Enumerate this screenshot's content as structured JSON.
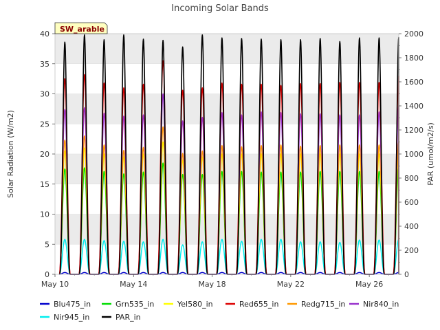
{
  "chart_data": {
    "type": "line",
    "title": "Incoming Solar Bands",
    "badge": "SW_arable",
    "ylabel": "Solar Radiation (W/m2)",
    "y2label": "PAR (umol/m2/s)",
    "ylim": [
      0,
      40
    ],
    "y2lim": [
      0,
      2000
    ],
    "yticks": [
      "0",
      "5",
      "10",
      "15",
      "20",
      "25",
      "30",
      "35",
      "40"
    ],
    "y2ticks": [
      "0",
      "200",
      "400",
      "600",
      "800",
      "1000",
      "1200",
      "1400",
      "1600",
      "1800",
      "2000"
    ],
    "xlim_days": [
      10,
      27.5
    ],
    "xticks": [
      {
        "day": 10,
        "label": "May 10"
      },
      {
        "day": 14,
        "label": "May 14"
      },
      {
        "day": 18,
        "label": "May 18"
      },
      {
        "day": 22,
        "label": "May 22"
      },
      {
        "day": 26,
        "label": "May 26"
      }
    ],
    "grid": "horizontal bands",
    "legend_position": "bottom",
    "days": [
      10,
      11,
      12,
      13,
      14,
      15,
      16,
      17,
      18,
      19,
      20,
      21,
      22,
      23,
      24,
      25,
      26,
      27
    ],
    "series": [
      {
        "name": "Blu475_in",
        "color": "#0000cc",
        "axis": "left",
        "peaks": [
          0.3,
          0.3,
          0.3,
          0.3,
          0.3,
          0.3,
          0.3,
          0.3,
          0.3,
          0.3,
          0.3,
          0.3,
          0.3,
          0.3,
          0.3,
          0.3,
          0.3,
          0.3
        ]
      },
      {
        "name": "Grn535_in",
        "color": "#00dd00",
        "axis": "left",
        "peaks": [
          17.5,
          17.7,
          17.1,
          16.7,
          17.0,
          18.5,
          16.6,
          16.6,
          17.1,
          17.1,
          17.0,
          17.0,
          17.0,
          17.1,
          17.1,
          17.1,
          17.1,
          17.7
        ]
      },
      {
        "name": "Yel580_in",
        "color": "#ffff00",
        "axis": "left",
        "peaks": [
          20.5,
          21.0,
          20.0,
          19.5,
          20.0,
          22.0,
          19.0,
          19.5,
          20.0,
          20.0,
          20.0,
          20.0,
          20.0,
          20.0,
          20.0,
          20.0,
          20.0,
          21.0
        ]
      },
      {
        "name": "Red655_in",
        "color": "#dd0000",
        "axis": "left",
        "peaks": [
          32.5,
          33.2,
          31.8,
          31.0,
          31.6,
          35.5,
          30.6,
          31.0,
          31.8,
          31.6,
          31.6,
          31.4,
          31.7,
          31.7,
          31.9,
          31.9,
          31.9,
          33.0
        ]
      },
      {
        "name": "Redg715_in",
        "color": "#ff9900",
        "axis": "left",
        "peaks": [
          22.3,
          23.0,
          21.5,
          20.6,
          21.1,
          24.5,
          20.1,
          20.5,
          21.4,
          21.2,
          21.4,
          21.5,
          21.3,
          21.4,
          21.5,
          21.5,
          21.5,
          22.0
        ]
      },
      {
        "name": "Nir840_in",
        "color": "#9933cc",
        "axis": "left",
        "peaks": [
          27.4,
          27.7,
          26.8,
          26.3,
          26.5,
          30.0,
          25.5,
          26.1,
          26.9,
          26.5,
          27.0,
          26.9,
          26.7,
          26.7,
          26.5,
          26.5,
          27.0,
          28.0
        ]
      },
      {
        "name": "Nir945_in",
        "color": "#00eeee",
        "axis": "left",
        "peaks": [
          5.8,
          5.8,
          5.6,
          5.5,
          5.4,
          5.8,
          4.9,
          5.4,
          5.8,
          5.5,
          5.8,
          5.8,
          5.4,
          5.4,
          5.3,
          5.7,
          5.7,
          5.8
        ]
      },
      {
        "name": "PAR_in",
        "color": "#000000",
        "axis": "right",
        "peaks": [
          1930,
          1990,
          1950,
          1990,
          1955,
          1945,
          1890,
          1990,
          1965,
          1960,
          1955,
          1950,
          1950,
          1960,
          1935,
          1965,
          1965,
          1970
        ]
      }
    ]
  }
}
